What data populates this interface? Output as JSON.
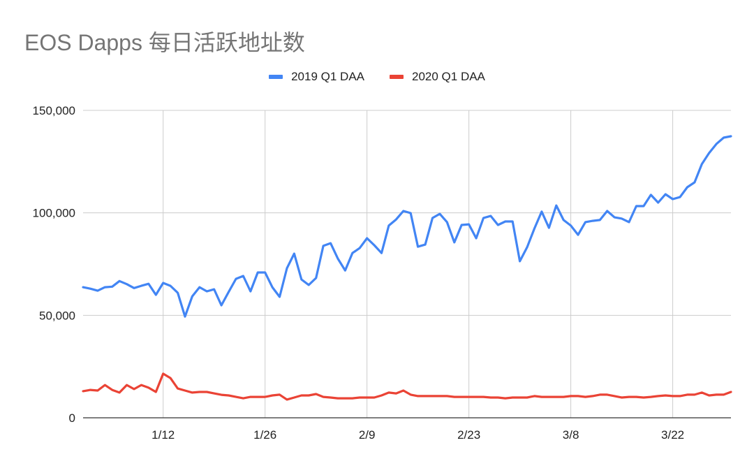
{
  "chart_data": {
    "type": "line",
    "title": "EOS Dapps 每日活跃地址数",
    "xlabel": "",
    "ylabel": "",
    "ylim": [
      0,
      150000
    ],
    "y_ticks": [
      0,
      50000,
      100000,
      150000
    ],
    "y_tick_labels": [
      "0",
      "50,000",
      "100,000",
      "150,000"
    ],
    "x_tick_labels": [
      "1/12",
      "1/26",
      "2/9",
      "2/23",
      "3/8",
      "3/22"
    ],
    "x_tick_index": [
      11,
      25,
      39,
      53,
      67,
      81
    ],
    "x_range": [
      "1/1",
      "3/31"
    ],
    "grid": true,
    "legend_position": "top",
    "series": [
      {
        "name": "2019 Q1 DAA",
        "color": "#4285f4",
        "values": [
          63700,
          63000,
          62000,
          63700,
          64000,
          66700,
          65200,
          63300,
          64400,
          65400,
          60000,
          65800,
          64400,
          61000,
          49400,
          59300,
          63700,
          61700,
          62700,
          54900,
          61400,
          67800,
          69200,
          61700,
          70900,
          70900,
          63700,
          59000,
          73000,
          80100,
          67500,
          64800,
          68200,
          83900,
          85200,
          77700,
          71900,
          80400,
          82800,
          87600,
          84200,
          80400,
          93800,
          96800,
          100900,
          99900,
          83500,
          84500,
          97500,
          99500,
          95500,
          85600,
          94100,
          94400,
          87600,
          97500,
          98500,
          94100,
          95800,
          95800,
          76400,
          83200,
          92400,
          100600,
          92700,
          103600,
          96500,
          93800,
          89300,
          95500,
          96100,
          96500,
          100900,
          97800,
          97200,
          95500,
          103300,
          103300,
          108800,
          105000,
          109100,
          106700,
          107700,
          112500,
          114900,
          123800,
          129200,
          133600,
          136700,
          137400
        ]
      },
      {
        "name": "2020 Q1 DAA",
        "color": "#ea4335",
        "values": [
          13000,
          13600,
          13300,
          16000,
          13600,
          12300,
          16000,
          14000,
          16000,
          14700,
          12600,
          21500,
          19400,
          14300,
          13300,
          12300,
          12600,
          12600,
          11900,
          11200,
          10900,
          10200,
          9500,
          10200,
          10200,
          10200,
          10900,
          11300,
          8900,
          9900,
          10900,
          10900,
          11600,
          10200,
          9900,
          9500,
          9500,
          9500,
          9900,
          9900,
          9900,
          10900,
          12300,
          11900,
          13300,
          11300,
          10600,
          10600,
          10600,
          10600,
          10600,
          10200,
          10200,
          10200,
          10200,
          10200,
          9900,
          9900,
          9500,
          9900,
          9900,
          9900,
          10600,
          10200,
          10200,
          10200,
          10200,
          10600,
          10600,
          10200,
          10600,
          11300,
          11300,
          10600,
          9900,
          10200,
          10200,
          9900,
          10200,
          10600,
          10900,
          10600,
          10600,
          11300,
          11300,
          12300,
          10900,
          11300,
          11300,
          12600
        ]
      }
    ]
  },
  "legend": {
    "items": [
      {
        "label": "2019 Q1 DAA",
        "color": "#4285f4"
      },
      {
        "label": "2020 Q1 DAA",
        "color": "#ea4335"
      }
    ]
  },
  "colors": {
    "title": "#757575",
    "gridline": "#cccccc",
    "axis": "#333333",
    "text": "#222222"
  }
}
